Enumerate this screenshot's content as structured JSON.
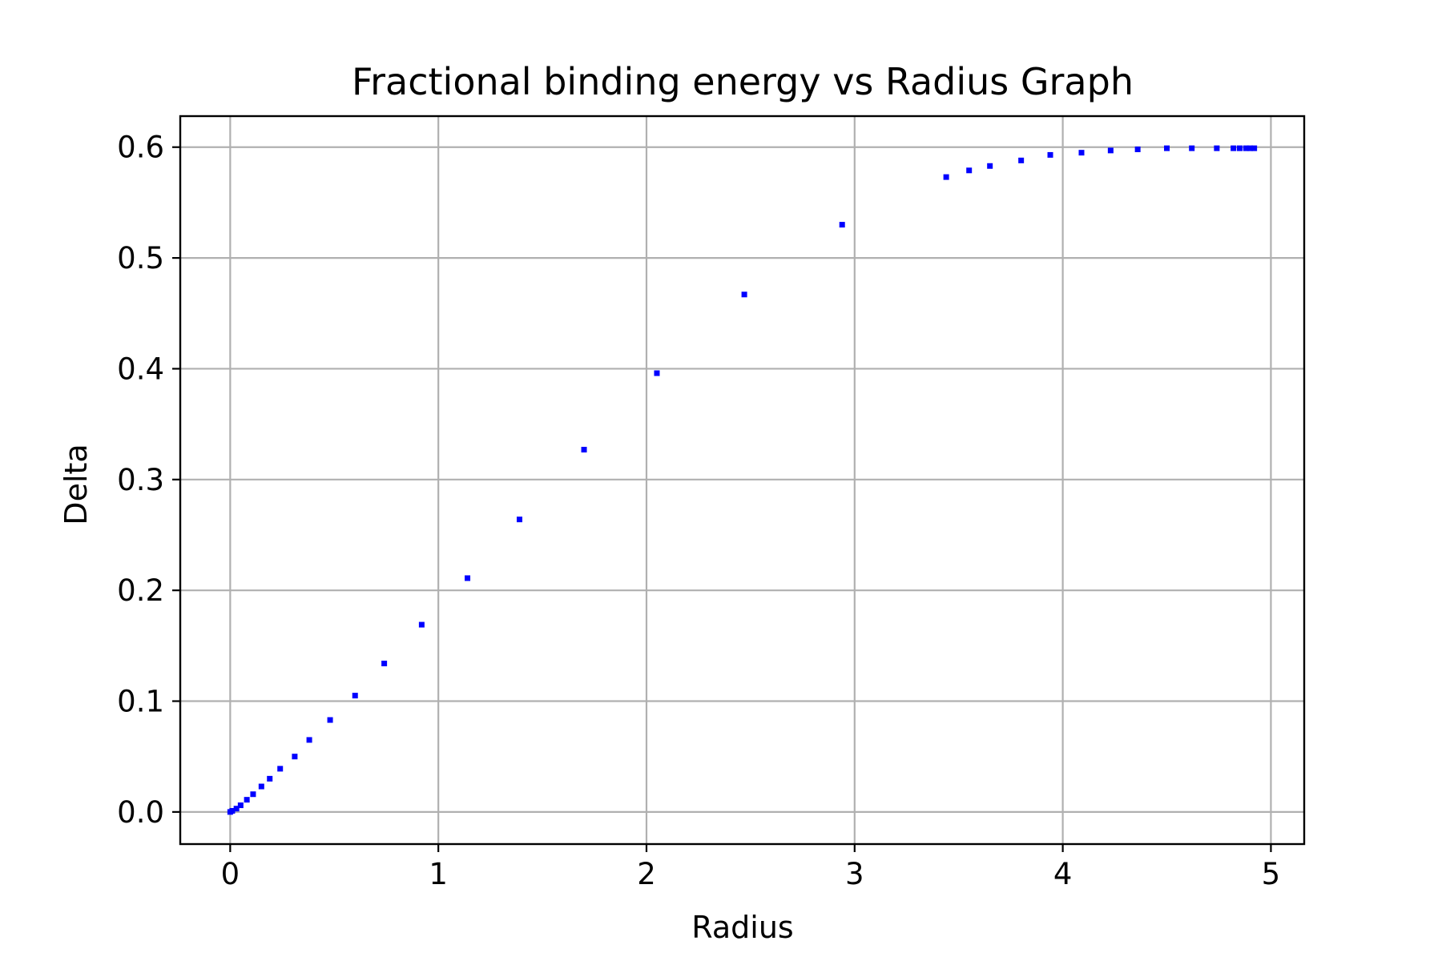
{
  "chart_data": {
    "type": "scatter",
    "title": "Fractional binding energy vs Radius Graph",
    "xlabel": "Radius",
    "ylabel": "Delta",
    "xlim": [
      -0.24,
      5.16
    ],
    "ylim": [
      -0.029,
      0.628
    ],
    "xticks": [
      0,
      1,
      2,
      3,
      4,
      5
    ],
    "xtick_labels": [
      "0",
      "1",
      "2",
      "3",
      "4",
      "5"
    ],
    "yticks": [
      0.0,
      0.1,
      0.2,
      0.3,
      0.4,
      0.5,
      0.6
    ],
    "ytick_labels": [
      "0.0",
      "0.1",
      "0.2",
      "0.3",
      "0.4",
      "0.5",
      "0.6"
    ],
    "grid": true,
    "marker_color": "#0000ff",
    "series": [
      {
        "x": [
          0.0,
          0.01,
          0.03,
          0.05,
          0.08,
          0.11,
          0.15,
          0.19,
          0.24,
          0.31,
          0.38,
          0.48,
          0.6,
          0.74,
          0.92,
          1.14,
          1.39,
          1.7,
          2.05,
          2.47,
          2.94,
          3.44,
          3.55,
          3.65,
          3.8,
          3.94,
          4.09,
          4.23,
          4.36,
          4.5,
          4.62,
          4.74,
          4.82,
          4.85,
          4.88,
          4.9,
          4.92
        ],
        "y": [
          0.0,
          0.001,
          0.003,
          0.006,
          0.011,
          0.016,
          0.023,
          0.03,
          0.039,
          0.05,
          0.065,
          0.083,
          0.105,
          0.134,
          0.169,
          0.211,
          0.264,
          0.327,
          0.396,
          0.467,
          0.53,
          0.573,
          0.579,
          0.583,
          0.588,
          0.593,
          0.595,
          0.597,
          0.598,
          0.599,
          0.599,
          0.599,
          0.599,
          0.599,
          0.599,
          0.599,
          0.599
        ]
      }
    ]
  }
}
